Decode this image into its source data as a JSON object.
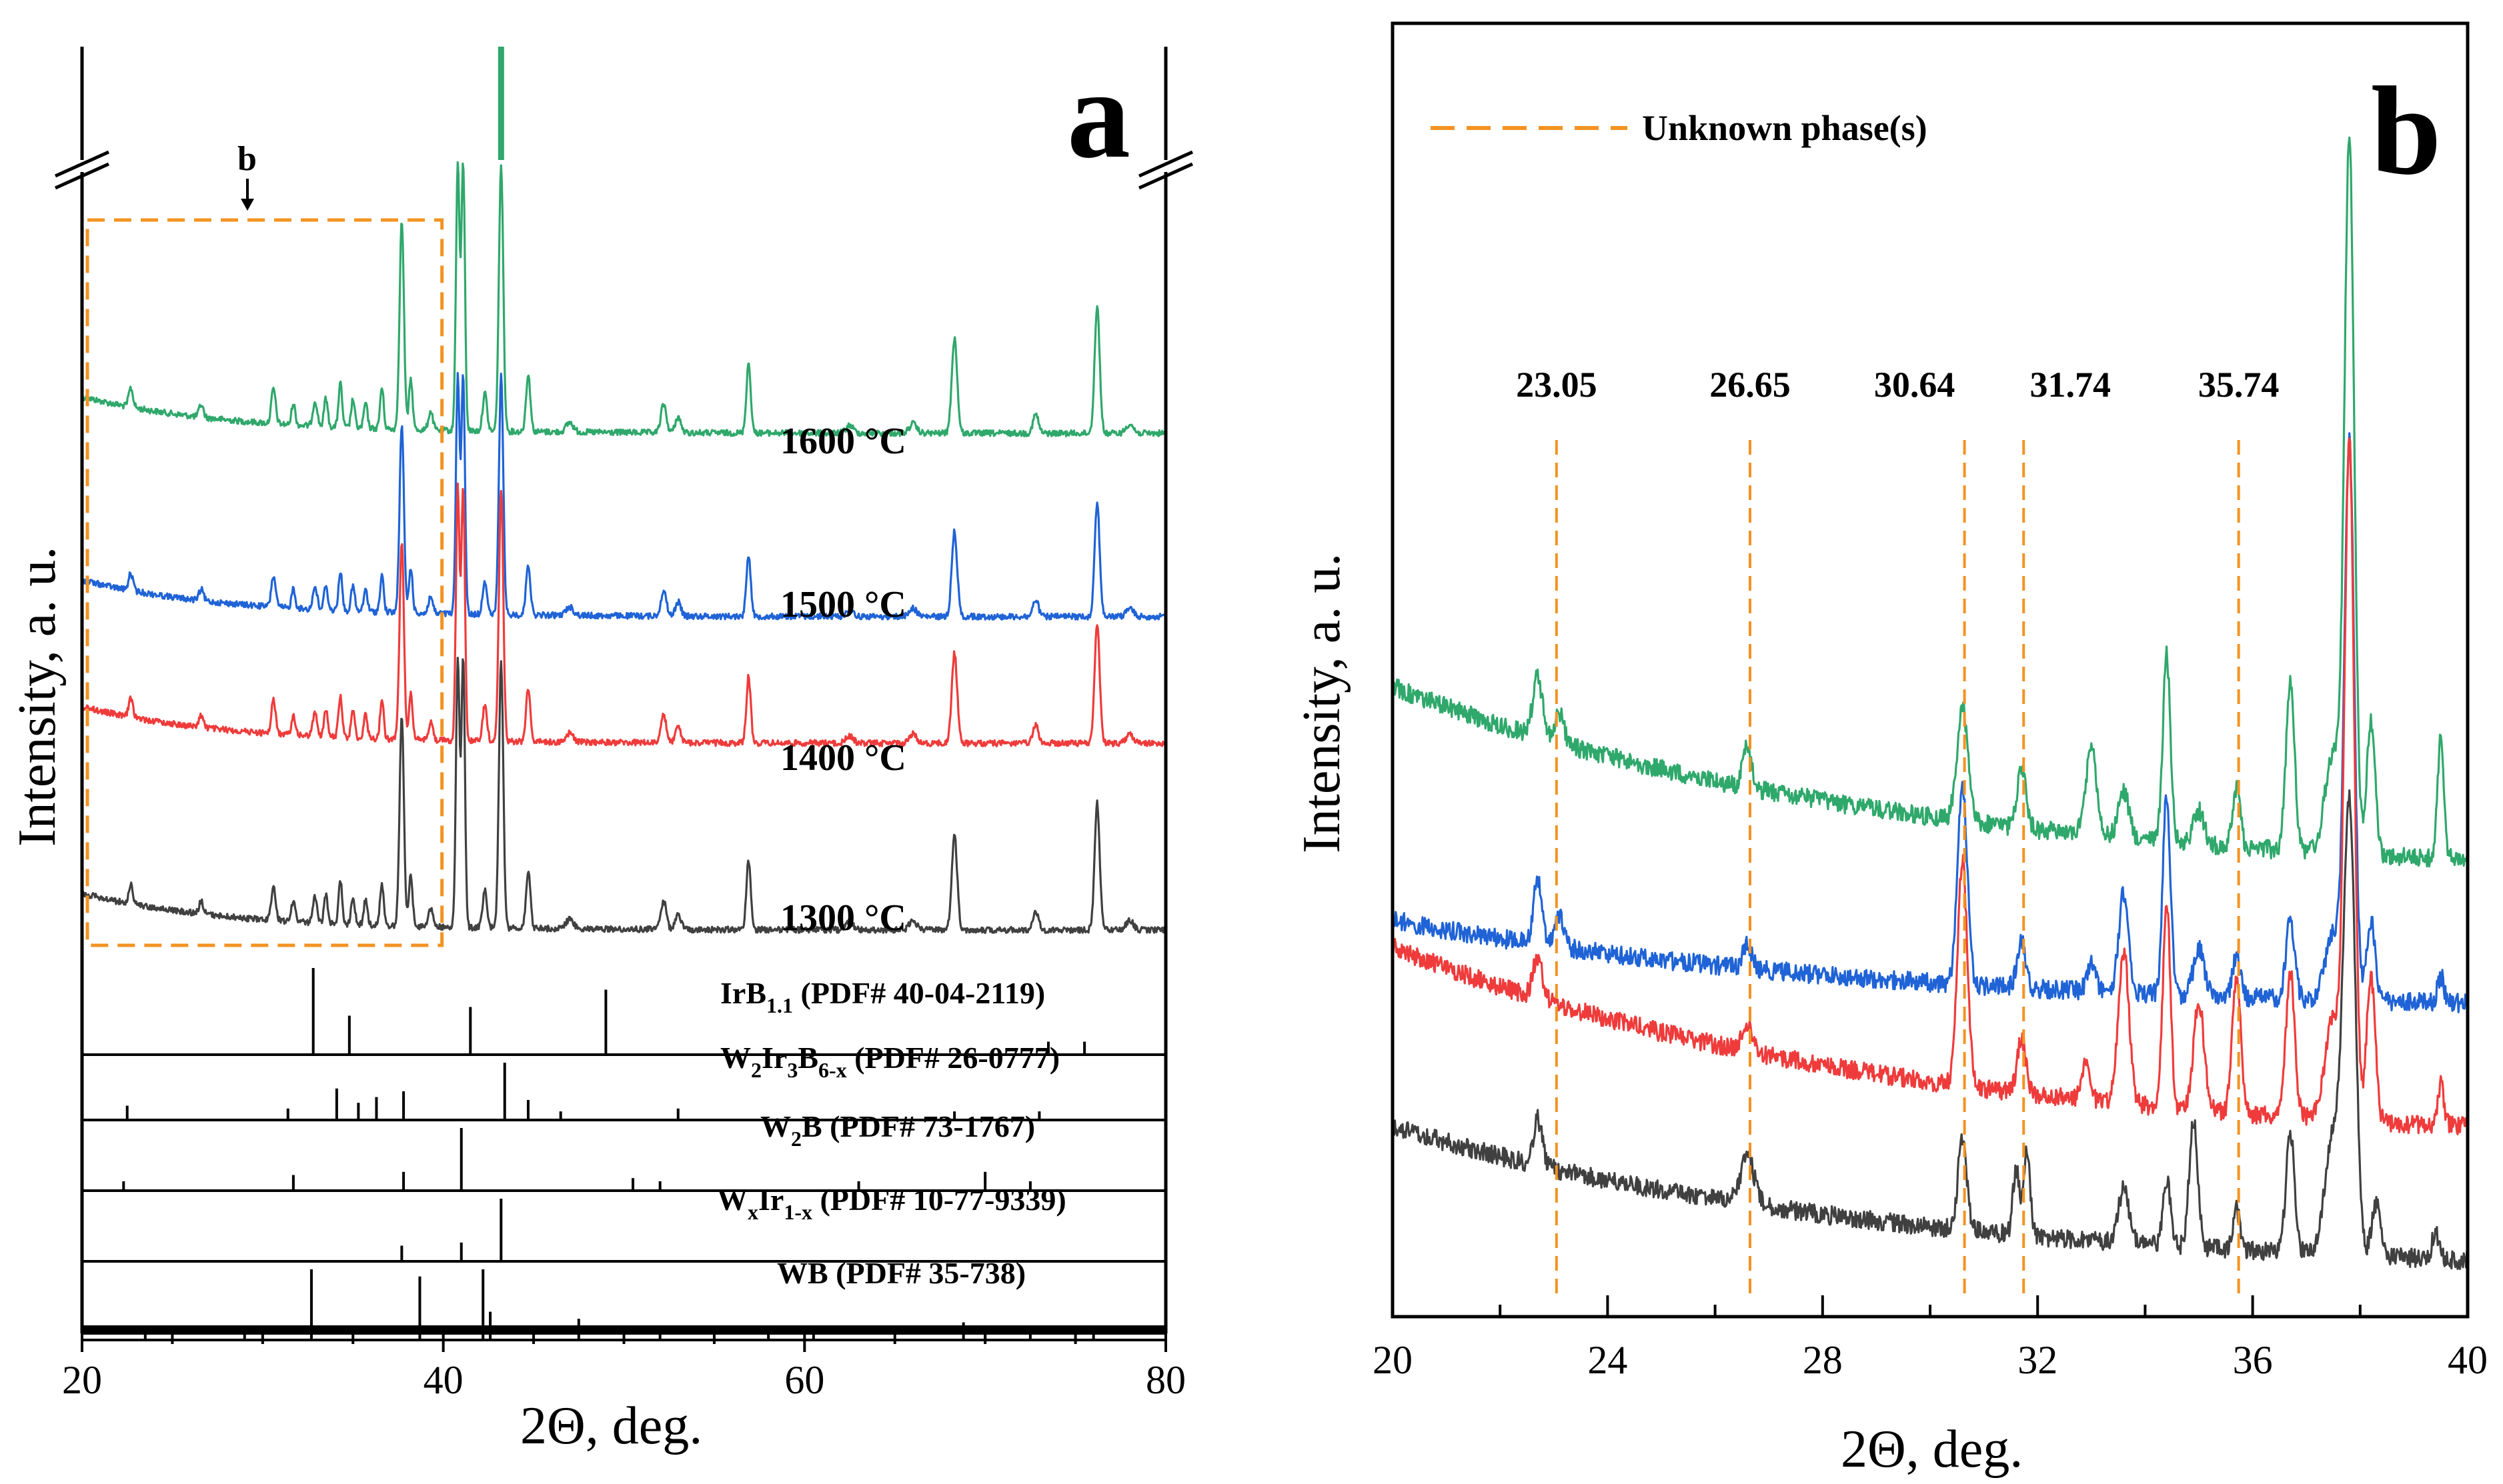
{
  "panel_a": {
    "letter": "a",
    "xlabel": "2Θ, deg.",
    "ylabel": "Intensity, a. u.",
    "inset_marker": "b",
    "ref_labels": [
      {
        "main": "IrB",
        "sub": "1.1",
        "rest": " (PDF# 40-04-2119)"
      },
      {
        "main": "W",
        "sub": "2",
        "mid": "Ir",
        "sub2": "3",
        "mid2": "B",
        "sub3": "6-x",
        "rest": " (PDF# 26-0777)"
      },
      {
        "main": "W",
        "sub": "2",
        "rest": "B (PDF# 73-1767)"
      },
      {
        "main": "W",
        "sub": "x",
        "mid": "Ir",
        "sub2": "1-x",
        "rest": " (PDF# 10-77-9339)"
      },
      {
        "main": "WB (PDF# 35-738)"
      }
    ]
  },
  "panel_b": {
    "letter": "b",
    "xlabel": "2Θ, deg.",
    "ylabel": "Intensity, a. u.",
    "legend": "Unknown phase(s)"
  },
  "colors": {
    "1600": "#2fa86b",
    "1500": "#1f63d6",
    "1400": "#ef3b3b",
    "1300": "#404040",
    "dashed": "#f39322"
  },
  "chart_data": [
    {
      "type": "line",
      "panel": "a",
      "xlabel": "2Θ, deg.",
      "ylabel": "Intensity, a. u.",
      "xlim": [
        20,
        80
      ],
      "xticks": [
        20,
        40,
        60,
        80
      ],
      "y_axis_break": true,
      "series": [
        {
          "name": "1600 °C",
          "baseline": 0.9,
          "label": "1600 °C"
        },
        {
          "name": "1500 °C",
          "baseline": 0.62,
          "label": "1500 °C"
        },
        {
          "name": "1400 °C",
          "baseline": 0.36,
          "label": "1400 °C"
        },
        {
          "name": "1300 °C",
          "baseline": 0.06,
          "label": "1300 °C"
        }
      ],
      "peaks_2theta": [
        22.7,
        30.6,
        31.7,
        33.5,
        34.3,
        35.0,
        36.6,
        37.7,
        38.2,
        40.8,
        41.1,
        42.3,
        43.2,
        44.7,
        52.2,
        56.9,
        68.3,
        76.2
      ],
      "inset_region": [
        20,
        40
      ],
      "reference_sticks": [
        {
          "label": "IrB1.1 (PDF# 40-04-2119)",
          "positions": [
            32.8,
            34.8,
            41.5,
            49.0,
            73.5,
            75.5
          ],
          "heights": [
            1.0,
            0.45,
            0.55,
            0.75,
            0.15,
            0.15
          ]
        },
        {
          "label": "W2Ir3B6-x (PDF# 26-0777)",
          "positions": [
            22.5,
            31.4,
            34.1,
            35.3,
            36.3,
            37.8,
            43.4,
            44.7,
            46.5,
            53.0,
            68.3,
            73.0
          ],
          "heights": [
            0.25,
            0.2,
            0.55,
            0.3,
            0.4,
            0.5,
            1.0,
            0.35,
            0.15,
            0.2,
            0.15,
            0.15
          ]
        },
        {
          "label": "W2B (PDF# 73-1767)",
          "positions": [
            22.3,
            31.7,
            37.8,
            41.0,
            50.5,
            52.0,
            63.0,
            70.0,
            72.5
          ],
          "heights": [
            0.15,
            0.25,
            0.3,
            1.0,
            0.2,
            0.15,
            0.15,
            0.3,
            0.15
          ]
        },
        {
          "label": "WxIr1-x (PDF# 10-77-9339)",
          "positions": [
            37.7,
            41.0,
            43.2
          ],
          "heights": [
            0.25,
            0.3,
            1.0
          ]
        },
        {
          "label": "WB (PDF# 35-738)",
          "positions": [
            23.5,
            29.0,
            32.7,
            38.7,
            42.2,
            42.6,
            47.5,
            52.0,
            58.0,
            60.5,
            68.8,
            70.0,
            72.5,
            76.0
          ],
          "heights": [
            0.1,
            0.2,
            1.0,
            0.9,
            1.0,
            0.4,
            0.3,
            0.15,
            0.15,
            0.15,
            0.25,
            0.15,
            0.15,
            0.15
          ]
        }
      ]
    },
    {
      "type": "line",
      "panel": "b",
      "xlabel": "2Θ, deg.",
      "ylabel": "Intensity, a. u.",
      "xlim": [
        20,
        40
      ],
      "xticks": [
        20,
        24,
        28,
        32,
        36,
        40
      ],
      "series": [
        {
          "name": "1600 °C"
        },
        {
          "name": "1500 °C"
        },
        {
          "name": "1400 °C"
        },
        {
          "name": "1300 °C"
        }
      ],
      "unknown_phase_lines": [
        23.05,
        26.65,
        30.64,
        31.74,
        35.74
      ],
      "unknown_phase_labels": [
        "23.05",
        "26.65",
        "30.64",
        "31.74",
        "35.74"
      ],
      "legend": "Unknown phase(s)",
      "legend_position": "top-left"
    }
  ]
}
